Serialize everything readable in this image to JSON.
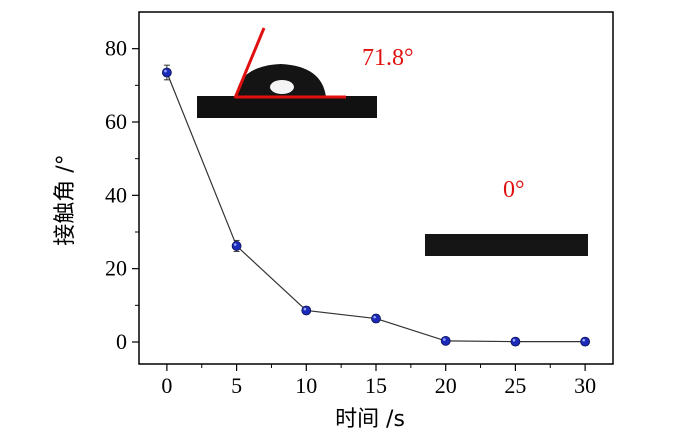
{
  "chart_data": {
    "type": "scatter",
    "title": "",
    "xlabel": "时间 /s",
    "ylabel": "接触角 /°",
    "xlim": [
      -2,
      32
    ],
    "ylim": [
      -6,
      90
    ],
    "xticks": [
      0,
      5,
      10,
      15,
      20,
      25,
      30
    ],
    "yticks": [
      0,
      20,
      40,
      60,
      80
    ],
    "grid": false,
    "legend": "none",
    "series": [
      {
        "x": [
          0,
          5,
          10,
          15,
          20,
          25,
          30
        ],
        "y": [
          73.5,
          26.2,
          8.6,
          6.4,
          0.3,
          0.1,
          0.1
        ],
        "error": [
          2.0,
          1.5,
          1.0,
          1.0,
          0.3,
          0.3,
          0.3
        ],
        "marker_color": "#1c2ab8",
        "line_color": "#333333"
      }
    ],
    "annotations": [
      {
        "text": "71.8°",
        "color": "#e01010"
      },
      {
        "text": "0°",
        "color": "#e01010"
      }
    ]
  }
}
